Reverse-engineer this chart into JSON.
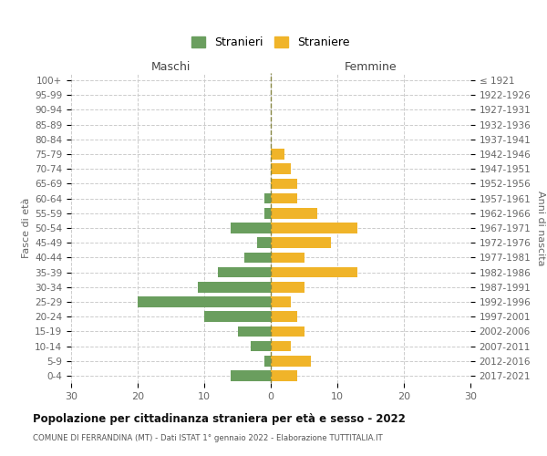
{
  "age_groups": [
    "0-4",
    "5-9",
    "10-14",
    "15-19",
    "20-24",
    "25-29",
    "30-34",
    "35-39",
    "40-44",
    "45-49",
    "50-54",
    "55-59",
    "60-64",
    "65-69",
    "70-74",
    "75-79",
    "80-84",
    "85-89",
    "90-94",
    "95-99",
    "100+"
  ],
  "birth_years": [
    "2017-2021",
    "2012-2016",
    "2007-2011",
    "2002-2006",
    "1997-2001",
    "1992-1996",
    "1987-1991",
    "1982-1986",
    "1977-1981",
    "1972-1976",
    "1967-1971",
    "1962-1966",
    "1957-1961",
    "1952-1956",
    "1947-1951",
    "1942-1946",
    "1937-1941",
    "1932-1936",
    "1927-1931",
    "1922-1926",
    "≤ 1921"
  ],
  "males": [
    6,
    1,
    3,
    5,
    10,
    20,
    11,
    8,
    4,
    2,
    6,
    1,
    1,
    0,
    0,
    0,
    0,
    0,
    0,
    0,
    0
  ],
  "females": [
    4,
    6,
    3,
    5,
    4,
    3,
    5,
    13,
    5,
    9,
    13,
    7,
    4,
    4,
    3,
    2,
    0,
    0,
    0,
    0,
    0
  ],
  "male_color": "#6a9e5e",
  "female_color": "#f0b429",
  "title": "Popolazione per cittadinanza straniera per età e sesso - 2022",
  "subtitle": "COMUNE DI FERRANDINA (MT) - Dati ISTAT 1° gennaio 2022 - Elaborazione TUTTITALIA.IT",
  "legend_male": "Stranieri",
  "legend_female": "Straniere",
  "xlabel_left": "Maschi",
  "xlabel_right": "Femmine",
  "ylabel_left": "Fasce di età",
  "ylabel_right": "Anni di nascita",
  "xlim": 30,
  "background_color": "#ffffff",
  "grid_color": "#cccccc"
}
